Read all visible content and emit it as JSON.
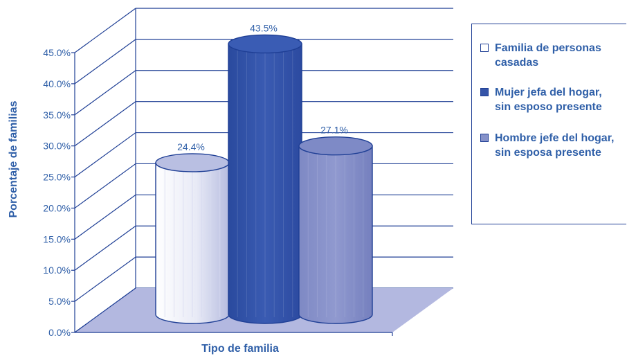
{
  "chart_data": {
    "type": "bar",
    "categories": [
      "Familia de personas casadas",
      "Mujer jefa del hogar, sin esposo presente",
      "Hombre jefe del hogar, sin esposa presente"
    ],
    "values": [
      24.4,
      43.5,
      27.1
    ],
    "value_labels": [
      "24.4%",
      "43.5%",
      "27.1%"
    ],
    "ylabel": "Porcentaje de familias",
    "xlabel": "Tipo de familia",
    "ylim": [
      0,
      45
    ],
    "yticks": [
      0,
      5,
      10,
      15,
      20,
      25,
      30,
      35,
      40,
      45
    ],
    "ytick_labels": [
      "0.0%",
      "5.0%",
      "10.0%",
      "15.0%",
      "20.0%",
      "25.0%",
      "30.0%",
      "35.0%",
      "40.0%",
      "45.0%"
    ],
    "grid": true,
    "legend_position": "right",
    "style": "3d-cylinder",
    "colors": [
      "#ffffff",
      "#3554a8",
      "#8591c9"
    ],
    "floor_color": "#b3b8e0",
    "line_color": "#1f3f95"
  },
  "legend": {
    "items": [
      {
        "label": "Familia de personas casadas",
        "color": "#ffffff"
      },
      {
        "label": "Mujer jefa del hogar, sin esposo presente",
        "color": "#3554a8"
      },
      {
        "label": "Hombre jefe del hogar, sin esposa presente",
        "color": "#8591c9"
      }
    ]
  }
}
